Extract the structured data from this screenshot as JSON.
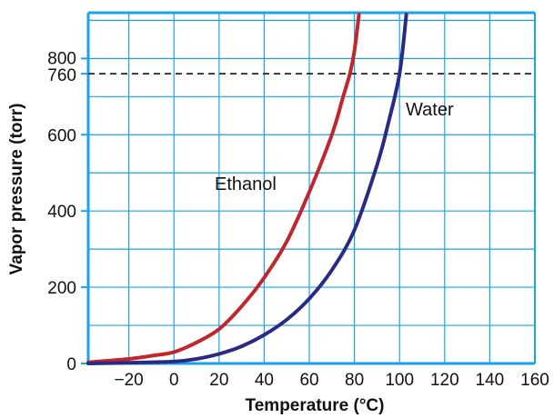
{
  "chart_data": {
    "type": "line",
    "title": "",
    "xlabel": "Temperature (°C)",
    "ylabel": "Vapor pressure (torr)",
    "xlim": [
      -38,
      160
    ],
    "ylim": [
      0,
      920
    ],
    "x_ticks": [
      "−20",
      "0",
      "20",
      "40",
      "60",
      "80",
      "100",
      "120",
      "140",
      "160"
    ],
    "y_ticks": [
      "0",
      "200",
      "400",
      "600",
      "760",
      "800"
    ],
    "grid": true,
    "reference_line": {
      "y": 760,
      "style": "dashed"
    },
    "colors": {
      "grid": "#1aa3e8",
      "ethanol": "#c0262e",
      "water": "#2a2a85",
      "reference": "#222222"
    },
    "series": [
      {
        "name": "Ethanol",
        "x": [
          -38,
          -30,
          -20,
          -10,
          0,
          10,
          20,
          30,
          40,
          50,
          60,
          70,
          75,
          78,
          80,
          82
        ],
        "y": [
          3,
          7,
          12,
          20,
          30,
          55,
          90,
          150,
          225,
          320,
          450,
          600,
          700,
          760,
          820,
          915
        ]
      },
      {
        "name": "Water",
        "x": [
          -38,
          -20,
          0,
          10,
          20,
          30,
          40,
          50,
          60,
          70,
          80,
          90,
          95,
          100,
          103
        ],
        "y": [
          0,
          2,
          5,
          12,
          25,
          45,
          75,
          115,
          170,
          245,
          350,
          520,
          630,
          760,
          915
        ]
      }
    ]
  }
}
